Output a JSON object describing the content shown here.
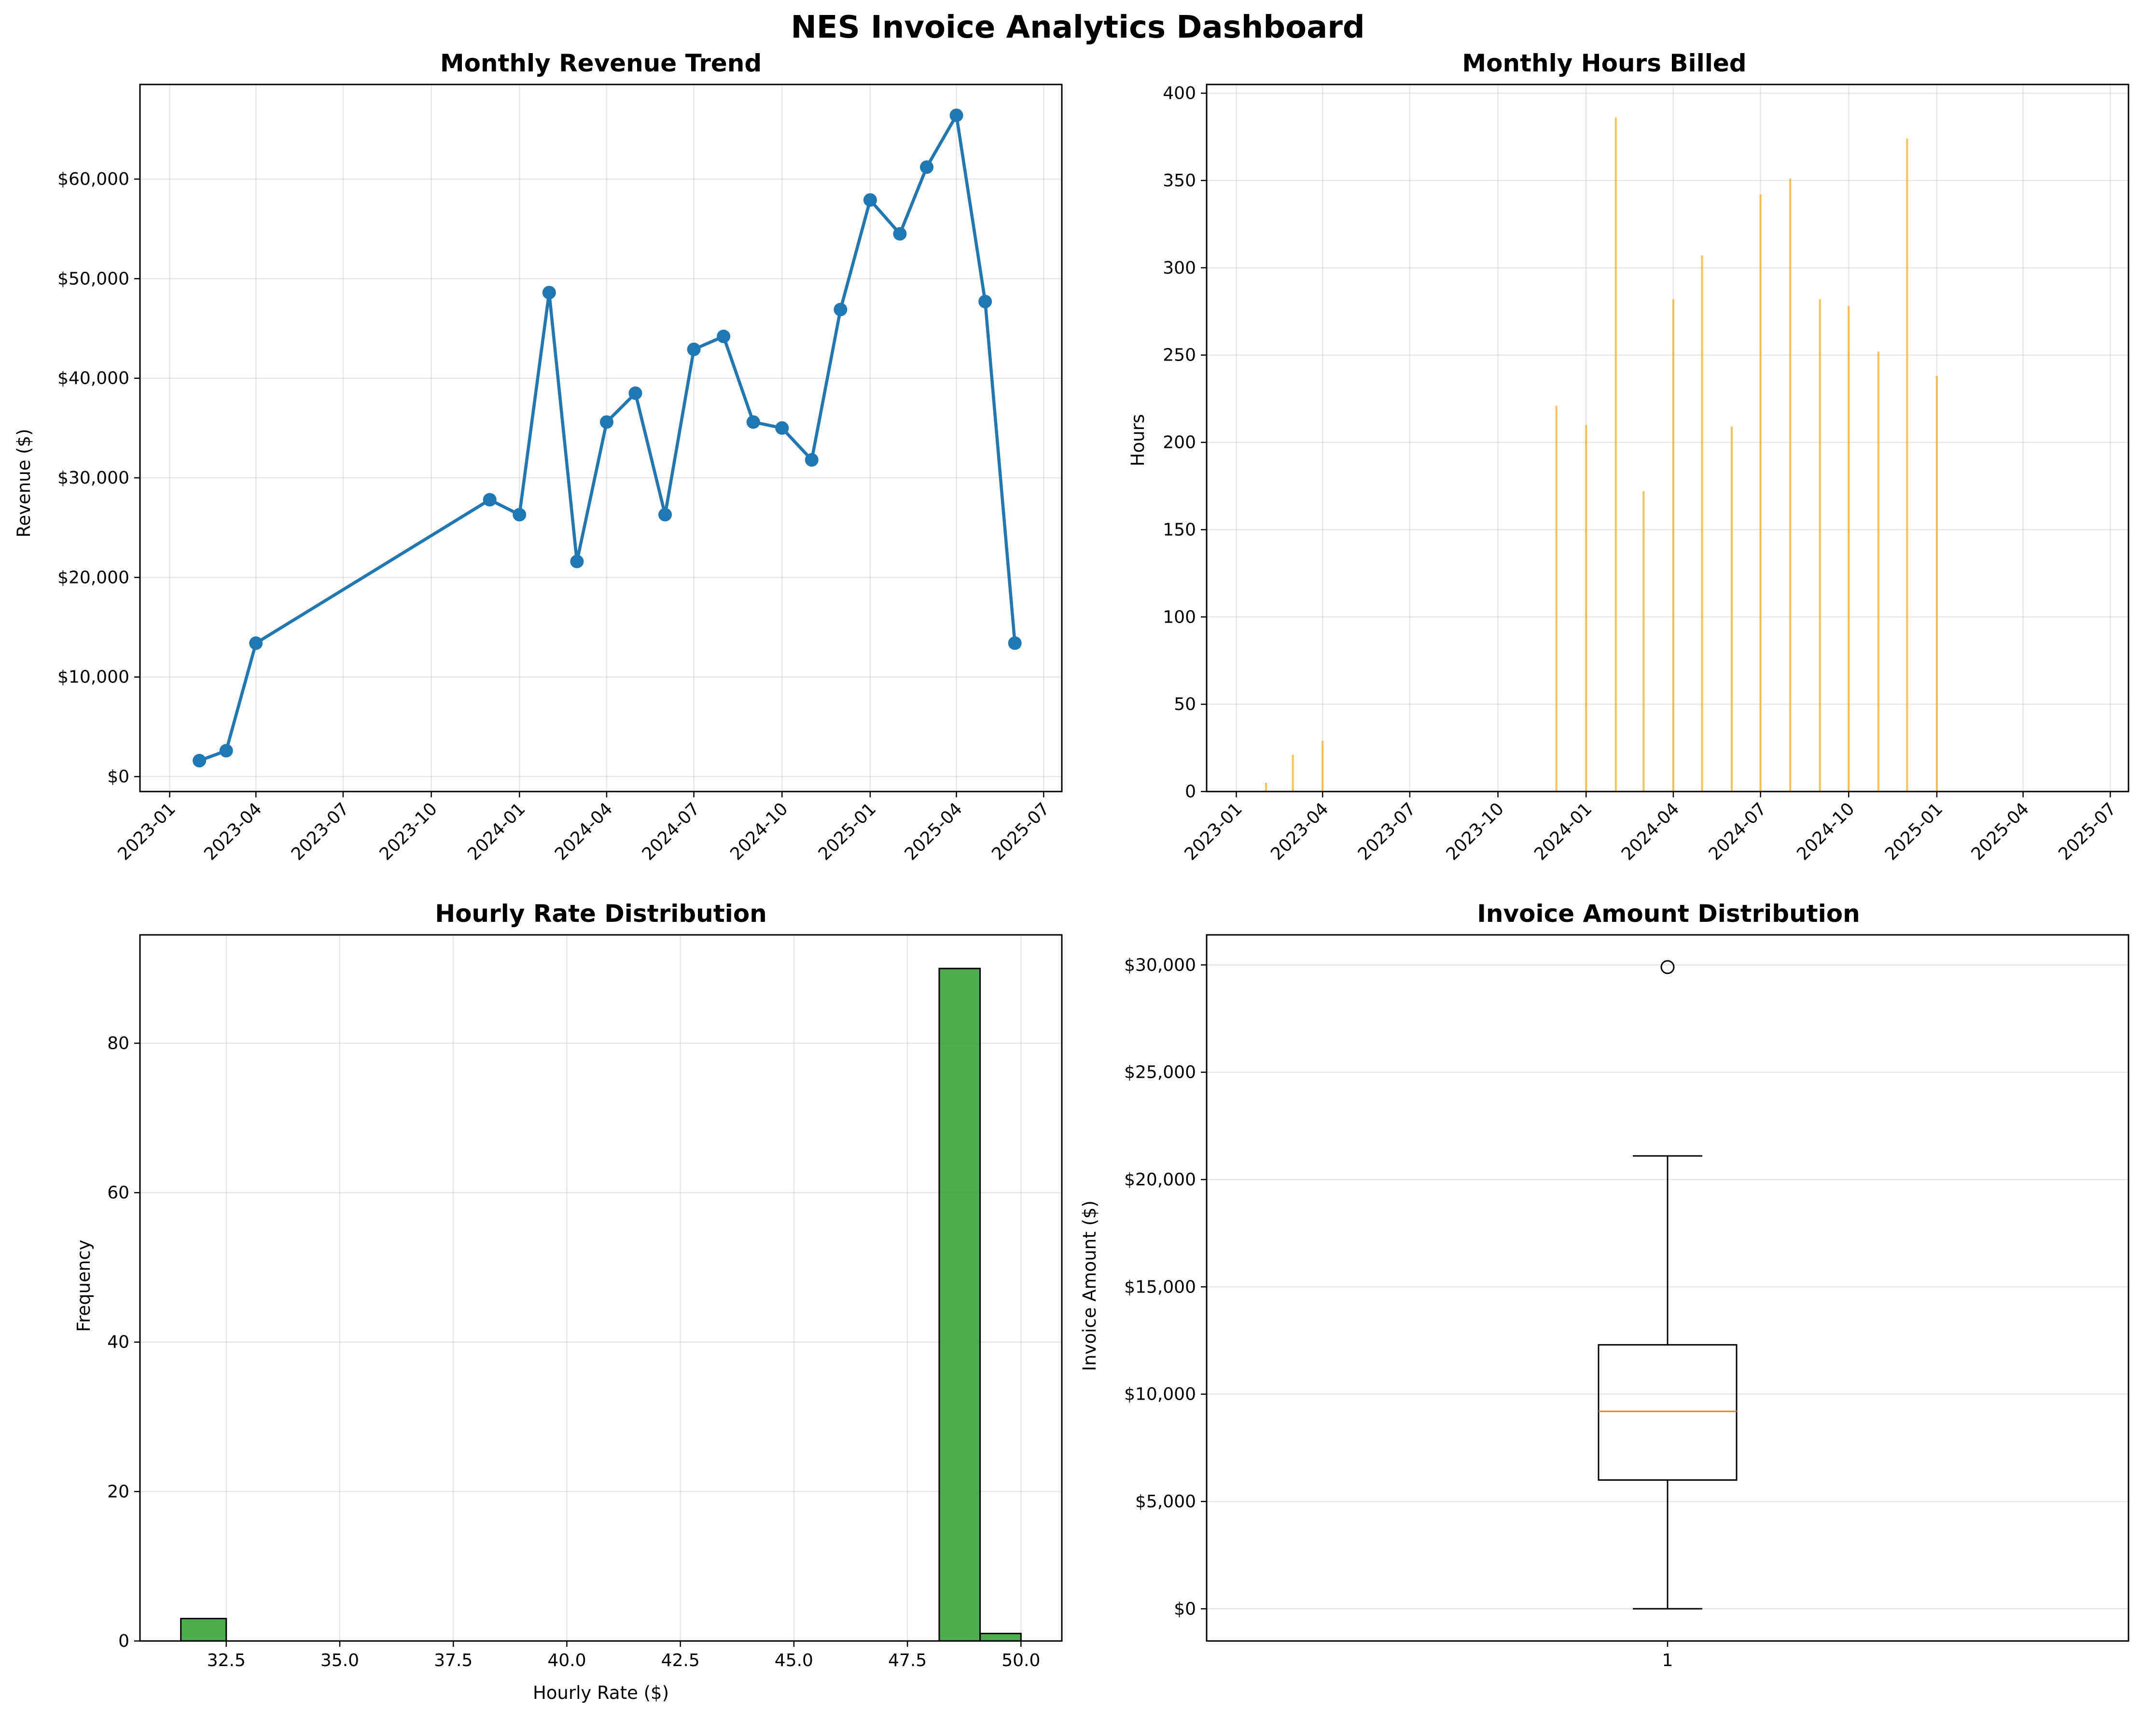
{
  "suptitle": "NES Invoice Analytics Dashboard",
  "chart_data": [
    {
      "type": "line",
      "title": "Monthly Revenue Trend",
      "xlabel": "",
      "ylabel": "Revenue ($)",
      "color": "#1f77b4",
      "x": [
        "2023-02",
        "2023-03",
        "2023-04",
        "2023-12",
        "2024-01",
        "2024-02",
        "2024-03",
        "2024-04",
        "2024-05",
        "2024-06",
        "2024-07",
        "2024-08",
        "2024-09",
        "2024-10",
        "2024-11",
        "2024-12",
        "2025-01",
        "2025-02",
        "2025-03",
        "2025-04",
        "2025-05",
        "2025-06"
      ],
      "values": [
        1600,
        2600,
        13400,
        27800,
        26300,
        48600,
        21600,
        35600,
        38500,
        26300,
        42900,
        44200,
        35600,
        35000,
        31800,
        46900,
        57900,
        54500,
        61200,
        66400,
        47700,
        13400
      ],
      "xlim": [
        "2022-12-01",
        "2025-07-20"
      ],
      "xticks": [
        "2023-01",
        "2023-04",
        "2023-07",
        "2023-10",
        "2024-01",
        "2024-04",
        "2024-07",
        "2024-10",
        "2025-01",
        "2025-04",
        "2025-07"
      ],
      "ylim": [
        -1500,
        69500
      ],
      "yticks": [
        0,
        10000,
        20000,
        30000,
        40000,
        50000,
        60000
      ],
      "ytick_labels": [
        "$0",
        "$10,000",
        "$20,000",
        "$30,000",
        "$40,000",
        "$50,000",
        "$60,000"
      ],
      "grid": true
    },
    {
      "type": "bar",
      "title": "Monthly Hours Billed",
      "xlabel": "",
      "ylabel": "Hours",
      "color": "#ffa500",
      "x": [
        "2023-02",
        "2023-03",
        "2023-04",
        "2023-12",
        "2024-01",
        "2024-02",
        "2024-03",
        "2024-04",
        "2024-05",
        "2024-06",
        "2024-07",
        "2024-08",
        "2024-09",
        "2024-10",
        "2024-11",
        "2024-12",
        "2025-01"
      ],
      "values": [
        5,
        21,
        29,
        221,
        210,
        386,
        172,
        282,
        307,
        209,
        342,
        351,
        282,
        278,
        252,
        374,
        238
      ],
      "xlim": [
        "2022-12-01",
        "2025-07-20"
      ],
      "xticks": [
        "2023-01",
        "2023-04",
        "2023-07",
        "2023-10",
        "2024-01",
        "2024-04",
        "2024-07",
        "2024-10",
        "2025-01",
        "2025-04",
        "2025-07"
      ],
      "ylim": [
        0,
        405
      ],
      "yticks": [
        0,
        50,
        100,
        150,
        200,
        250,
        300,
        350,
        400
      ],
      "grid": true
    },
    {
      "type": "bar",
      "title": "Hourly Rate Distribution",
      "xlabel": "Hourly Rate ($)",
      "ylabel": "Frequency",
      "color": "#2ca02c",
      "bins": [
        [
          31.5,
          32.5,
          3
        ],
        [
          48.2,
          49.1,
          90
        ],
        [
          49.1,
          50.0,
          1
        ]
      ],
      "xlim": [
        30.6,
        50.9
      ],
      "xticks": [
        32.5,
        35.0,
        37.5,
        40.0,
        42.5,
        45.0,
        47.5,
        50.0
      ],
      "ylim": [
        0,
        94.5
      ],
      "yticks": [
        0,
        20,
        40,
        60,
        80
      ],
      "grid": true
    },
    {
      "type": "box",
      "title": "Invoice Amount Distribution",
      "xlabel": "",
      "ylabel": "Invoice Amount ($)",
      "category": "1",
      "whisker_low": 0,
      "q1": 6000,
      "median": 9200,
      "q3": 12300,
      "whisker_high": 21100,
      "outliers": [
        29900
      ],
      "median_color": "#ff7f0e",
      "ylim": [
        -1500,
        31400
      ],
      "yticks": [
        0,
        5000,
        10000,
        15000,
        20000,
        25000,
        30000
      ],
      "ytick_labels": [
        "$0",
        "$5,000",
        "$10,000",
        "$15,000",
        "$20,000",
        "$25,000",
        "$30,000"
      ],
      "grid": true
    }
  ]
}
